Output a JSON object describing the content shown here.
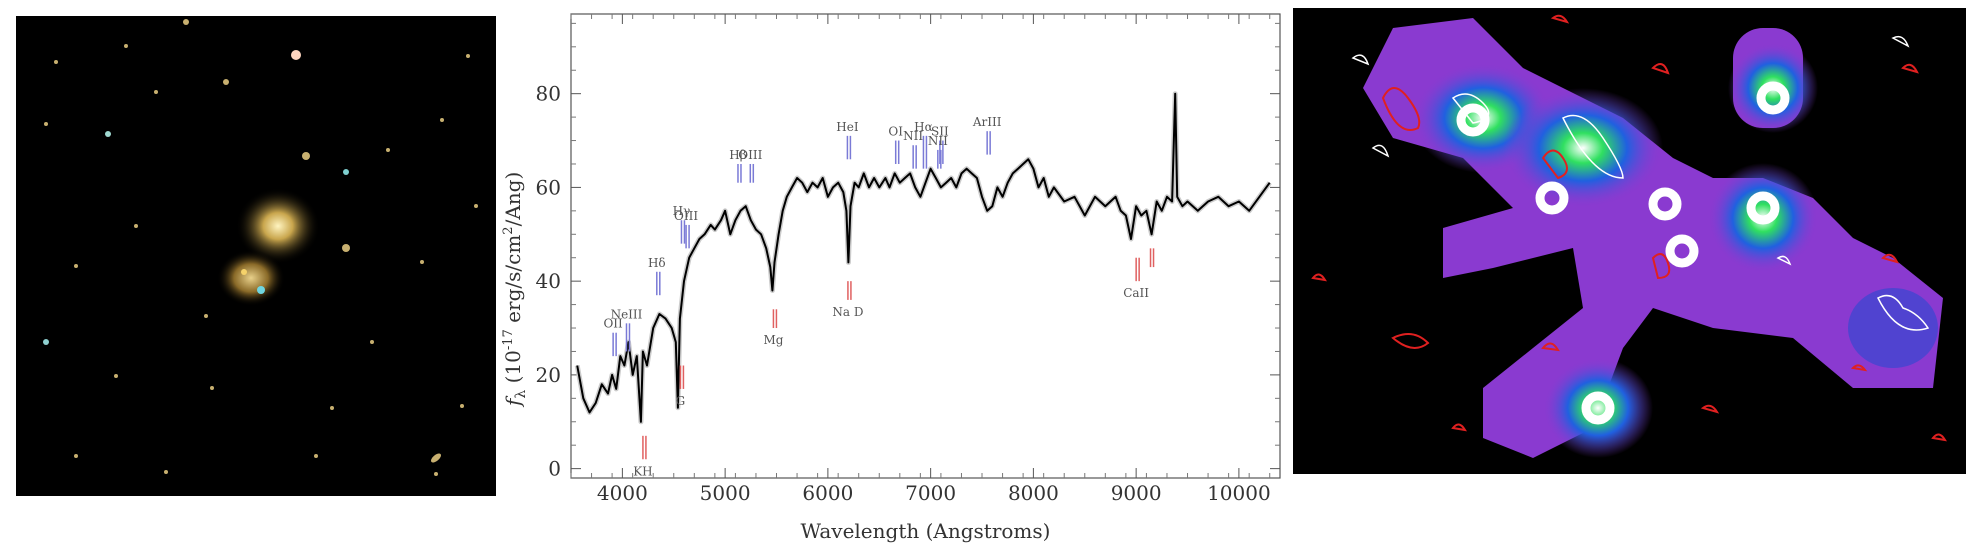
{
  "chart_data": {
    "type": "line",
    "ylabel_parts": {
      "f": "f",
      "sub": "λ",
      "rest": "(10",
      "exp": "-17",
      "tail": " erg/s/cm",
      "exp2": "2",
      "end": "/Ang)"
    },
    "xlabel": "Wavelength (Angstroms)",
    "xlim": [
      3500,
      10400
    ],
    "ylim": [
      -2,
      97
    ],
    "xticks": [
      4000,
      5000,
      6000,
      7000,
      8000,
      9000,
      10000
    ],
    "xtick_labels": [
      "4000",
      "5000",
      "6000",
      "7000",
      "8000",
      "9000",
      "10000"
    ],
    "yticks": [
      0,
      20,
      40,
      60,
      80
    ],
    "ytick_labels": [
      "0",
      "20",
      "40",
      "60",
      "80"
    ],
    "series": [
      {
        "x": [
          3560,
          3620,
          3680,
          3740,
          3800,
          3860,
          3900,
          3940,
          3980,
          4020,
          4060,
          4100,
          4140,
          4180,
          4200,
          4240,
          4300,
          4360,
          4420,
          4480,
          4520,
          4540,
          4560,
          4600,
          4650,
          4700,
          4750,
          4800,
          4860,
          4900,
          4960,
          5000,
          5050,
          5100,
          5150,
          5200,
          5250,
          5300,
          5350,
          5400,
          5440,
          5460,
          5480,
          5520,
          5560,
          5600,
          5650,
          5700,
          5750,
          5800,
          5850,
          5900,
          5950,
          6000,
          6050,
          6100,
          6150,
          6180,
          6200,
          6220,
          6260,
          6300,
          6350,
          6400,
          6450,
          6500,
          6560,
          6600,
          6650,
          6700,
          6750,
          6800,
          6850,
          6900,
          6950,
          7000,
          7050,
          7100,
          7150,
          7200,
          7250,
          7300,
          7350,
          7400,
          7450,
          7500,
          7550,
          7600,
          7650,
          7700,
          7750,
          7800,
          7850,
          7900,
          7950,
          8000,
          8050,
          8100,
          8150,
          8200,
          8300,
          8400,
          8500,
          8600,
          8700,
          8800,
          8850,
          8900,
          8950,
          9000,
          9050,
          9100,
          9150,
          9200,
          9250,
          9300,
          9350,
          9380,
          9400,
          9450,
          9500,
          9600,
          9700,
          9800,
          9900,
          10000,
          10100,
          10200,
          10300
        ],
        "y": [
          22,
          15,
          12,
          14,
          18,
          16,
          20,
          17,
          24,
          22,
          27,
          20,
          24,
          10,
          25,
          22,
          30,
          33,
          32,
          30,
          27,
          13,
          32,
          40,
          45,
          47,
          49,
          50,
          52,
          51,
          53,
          55,
          50,
          53,
          55,
          56,
          53,
          51,
          50,
          47,
          43,
          38,
          44,
          50,
          55,
          58,
          60,
          62,
          61,
          59,
          61,
          60,
          62,
          58,
          60,
          61,
          59,
          55,
          44,
          56,
          61,
          60,
          63,
          60,
          62,
          60,
          62,
          60,
          63,
          61,
          62,
          63,
          60,
          58,
          61,
          64,
          62,
          60,
          61,
          62,
          60,
          63,
          64,
          63,
          62,
          58,
          55,
          56,
          60,
          58,
          61,
          63,
          64,
          65,
          66,
          64,
          60,
          62,
          58,
          60,
          57,
          58,
          54,
          58,
          56,
          58,
          55,
          54,
          49,
          56,
          54,
          55,
          50,
          57,
          55,
          58,
          57,
          80,
          58,
          56,
          57,
          55,
          57,
          58,
          56,
          57,
          55,
          58,
          61
        ]
      }
    ],
    "annotations_blue": [
      {
        "label": "OII",
        "x": 3910,
        "y0": 24,
        "y1": 29
      },
      {
        "label": "NeIII",
        "x": 4040,
        "y0": 25,
        "y1": 31
      },
      {
        "label": "Hδ",
        "x": 4335,
        "y0": 37,
        "y1": 42
      },
      {
        "label": "Hγ",
        "x": 4575,
        "y0": 48,
        "y1": 53
      },
      {
        "label": "OIII",
        "x": 4620,
        "y0": 47,
        "y1": 52
      },
      {
        "label": "Hβ",
        "x": 5125,
        "y0": 61,
        "y1": 65
      },
      {
        "label": "OIII",
        "x": 5245,
        "y0": 61,
        "y1": 65
      },
      {
        "label": "HeI",
        "x": 6190,
        "y0": 66,
        "y1": 71
      },
      {
        "label": "OI",
        "x": 6660,
        "y0": 65,
        "y1": 70
      },
      {
        "label": "NII",
        "x": 6830,
        "y0": 64,
        "y1": 69
      },
      {
        "label": "Hα",
        "x": 6930,
        "y0": 64,
        "y1": 71
      },
      {
        "label": "SII",
        "x": 7090,
        "y0": 65,
        "y1": 70
      },
      {
        "label": "NII",
        "x": 7070,
        "y0": 64,
        "y1": 68
      },
      {
        "label": "ArIII",
        "x": 7550,
        "y0": 67,
        "y1": 72
      }
    ],
    "annotations_red": [
      {
        "label": "KH",
        "x": 4200,
        "y0": 2,
        "y1": 7
      },
      {
        "label": "G",
        "x": 4565,
        "y0": 17,
        "y1": 22
      },
      {
        "label": "Mg",
        "x": 5470,
        "y0": 30,
        "y1": 34
      },
      {
        "label": "Na D",
        "x": 6195,
        "y0": 36,
        "y1": 40
      },
      {
        "label": "CaII",
        "x": 9000,
        "y0": 40,
        "y1": 45
      },
      {
        "label": "",
        "x": 9140,
        "y0": 43,
        "y1": 47
      }
    ]
  },
  "colors": {
    "emission": "#7a7ad6",
    "absorption": "#e06060",
    "spectrum": "#000000"
  }
}
